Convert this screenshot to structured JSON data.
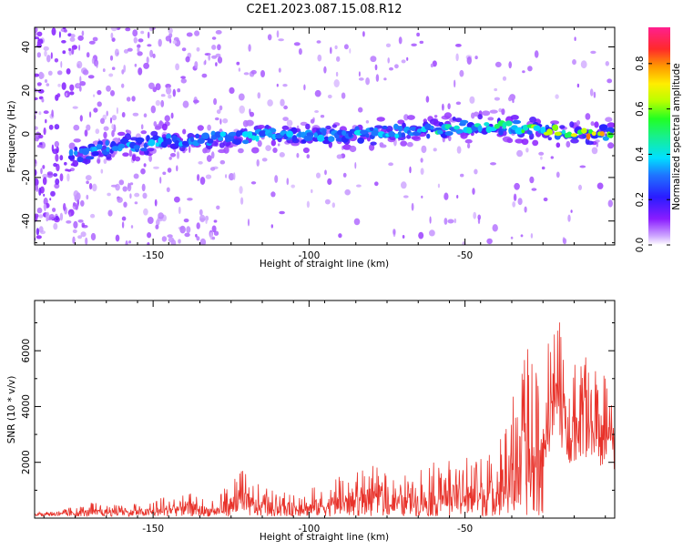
{
  "title": "C2E1.2023.087.15.08.R12",
  "chart_data": [
    {
      "type": "heatmap",
      "xlabel": "Height of straight line (km)",
      "ylabel": "Frequency (Hz)",
      "xlim": [
        -188,
        -2
      ],
      "ylim": [
        -51,
        49
      ],
      "xticks": [
        -150,
        -100,
        -50
      ],
      "yticks": [
        -40,
        -20,
        0,
        20,
        40
      ],
      "colorbar": {
        "label": "Normalized spectral amplitude",
        "range": [
          0,
          0.96
        ],
        "ticks": [
          "0.0",
          "0.2",
          "0.4",
          "0.6",
          "0.8"
        ]
      },
      "ridge": {
        "description_points_x": [
          -180,
          -160,
          -140,
          -120,
          -100,
          -80,
          -60,
          -40,
          -20,
          -4
        ],
        "center_freq_hz": [
          -11,
          -5,
          -3,
          -1,
          -1,
          0,
          2,
          4,
          1,
          0
        ],
        "peak_amplitude": [
          0.35,
          0.4,
          0.4,
          0.45,
          0.4,
          0.45,
          0.5,
          0.55,
          0.75,
          0.95
        ]
      }
    },
    {
      "type": "line",
      "xlabel": "Height of straight line (km)",
      "ylabel": "SNR (10 * v/v)",
      "xlim": [
        -188,
        -2
      ],
      "ylim": [
        0,
        7800
      ],
      "xticks": [
        -150,
        -100,
        -50
      ],
      "yticks": [
        2000,
        4000,
        6000
      ],
      "color": "#e8322a",
      "envelope": {
        "x": [
          -188,
          -180,
          -170,
          -160,
          -150,
          -140,
          -135,
          -130,
          -122,
          -118,
          -110,
          -100,
          -90,
          -80,
          -70,
          -60,
          -50,
          -40,
          -35,
          -30,
          -25,
          -22,
          -20,
          -17,
          -12,
          -8,
          -5,
          -2
        ],
        "y": [
          250,
          300,
          550,
          500,
          600,
          1100,
          800,
          650,
          1900,
          1300,
          900,
          1100,
          1500,
          1900,
          1500,
          2000,
          2200,
          2600,
          4500,
          6400,
          5000,
          7500,
          7800,
          5500,
          6400,
          5400,
          5200,
          4700
        ]
      }
    }
  ]
}
